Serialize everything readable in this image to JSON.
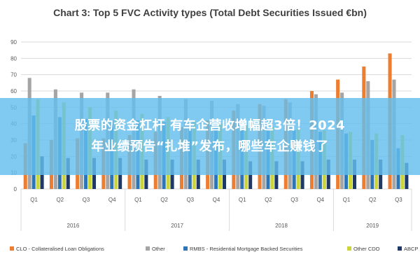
{
  "chart_data": {
    "type": "bar",
    "title": "Chart 3: Top 5 FVC Activity types (Total Debt Securities Issued €bn)",
    "ylim": [
      0,
      90
    ],
    "yticks": [
      0,
      10,
      20,
      30,
      40,
      50,
      60,
      70,
      80,
      90
    ],
    "grid": true,
    "legend_position": "bottom",
    "quarters": [
      "Q1",
      "Q2",
      "Q3",
      "Q4",
      "Q1",
      "Q2",
      "Q3",
      "Q4",
      "Q1",
      "Q2",
      "Q3",
      "Q4",
      "Q1",
      "Q2",
      "Q3"
    ],
    "years": [
      {
        "label": "2016",
        "quarters": 4
      },
      {
        "label": "2017",
        "quarters": 4
      },
      {
        "label": "2018",
        "quarters": 4
      },
      {
        "label": "2019",
        "quarters": 3
      }
    ],
    "series": [
      {
        "name": "CLO - Collateralised Loan Obligations",
        "color": "#ED7D31",
        "values": [
          28,
          30,
          31,
          31,
          33,
          35,
          38,
          42,
          48,
          52,
          55,
          60,
          67,
          75,
          83
        ]
      },
      {
        "name": "Other",
        "color": "#A5A5A5",
        "values": [
          68,
          61,
          59,
          59,
          61,
          57,
          55,
          54,
          52,
          51,
          53,
          58,
          59,
          66,
          67
        ]
      },
      {
        "name": "RMBS - Residential Mortgage Backed Securities",
        "color": "#2E75B6",
        "values": [
          45,
          44,
          43,
          42,
          42,
          41,
          40,
          39,
          38,
          37,
          36,
          35,
          34,
          30,
          25
        ]
      },
      {
        "name": "Other CDO",
        "color": "#C9D53A",
        "values": [
          55,
          53,
          50,
          48,
          46,
          44,
          42,
          40,
          39,
          38,
          37,
          36,
          35,
          34,
          33
        ]
      },
      {
        "name": "ABCP",
        "color": "#1F3864",
        "values": [
          20,
          19,
          19,
          19,
          18,
          18,
          18,
          18,
          17,
          17,
          17,
          18,
          18,
          18,
          16
        ]
      }
    ]
  },
  "overlay": {
    "line1": "股票的资金杠杆 有车企营收增幅超3倍！2024",
    "line2": "年业绩预告“扎堆”发布，哪些车企赚钱了"
  }
}
